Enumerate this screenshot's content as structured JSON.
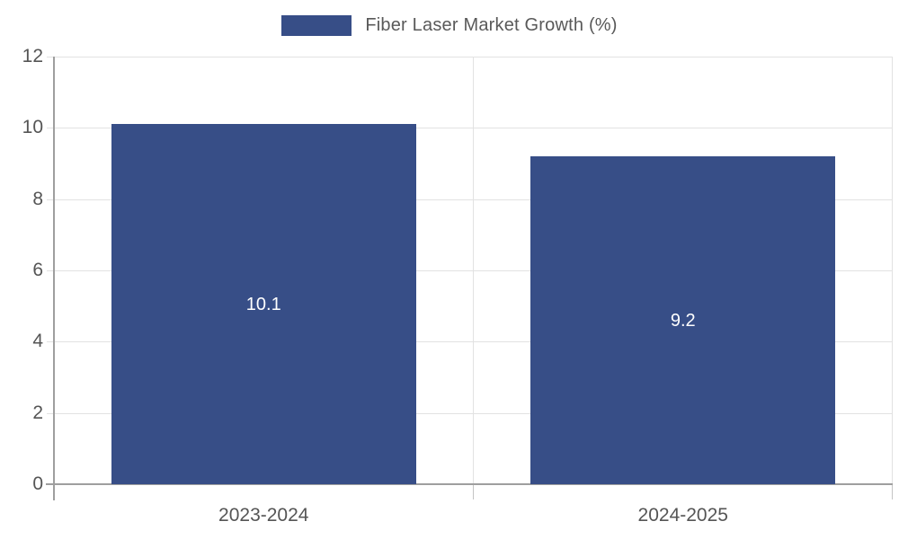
{
  "legend": {
    "label": "Fiber Laser Market Growth (%)"
  },
  "chart_data": {
    "type": "bar",
    "title": "Fiber Laser Market Growth (%)",
    "categories": [
      "2023-2024",
      "2024-2025"
    ],
    "values": [
      10.1,
      9.2
    ],
    "value_labels": [
      "10.1",
      "9.2"
    ],
    "xlabel": "",
    "ylabel": "",
    "ylim": [
      0,
      12
    ],
    "yticks": [
      0,
      2,
      4,
      6,
      8,
      10,
      12
    ],
    "grid": true,
    "legend_position": "top",
    "colors": {
      "bar": "#374E87",
      "value_label": "#ffffff",
      "grid": "#e2e2e2",
      "axis": "#9f9f9f",
      "boundary_tick": "#c4c4c4",
      "tick_text": "#555555",
      "legend_text": "#595959"
    }
  }
}
